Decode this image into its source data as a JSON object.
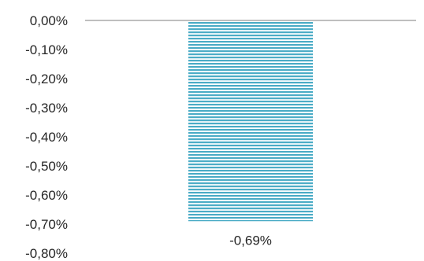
{
  "chart_data": {
    "type": "bar",
    "categories": [
      ""
    ],
    "values": [
      -0.69
    ],
    "value_unit": "%",
    "data_labels": [
      "-0,69%"
    ],
    "y_ticks": [
      0,
      -0.1,
      -0.2,
      -0.3,
      -0.4,
      -0.5,
      -0.6,
      -0.7,
      -0.8
    ],
    "y_tick_labels": [
      "0,00%",
      "-0,10%",
      "-0,20%",
      "-0,30%",
      "-0,40%",
      "-0,50%",
      "-0,60%",
      "-0,70%",
      "-0,80%"
    ],
    "ylim": [
      -0.8,
      0
    ],
    "grid": false,
    "bar_pattern": "horizontal-stripes",
    "bar_color": "#4bacc6",
    "axis_line_color": "#bfbfbf",
    "title": "",
    "xlabel": "",
    "ylabel": ""
  }
}
